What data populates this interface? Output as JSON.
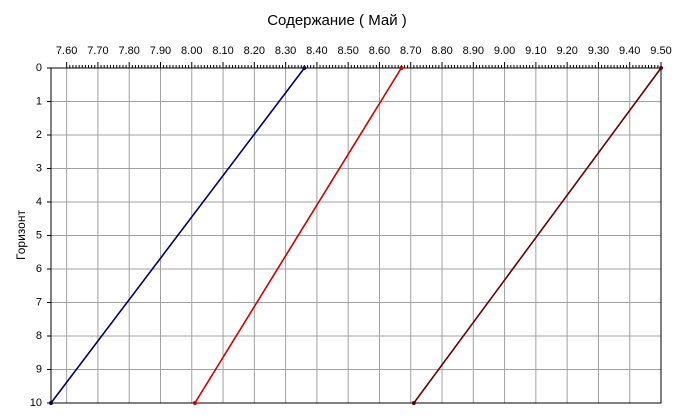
{
  "chart_data": {
    "type": "line",
    "title": "Содержание    ( Май )",
    "ylabel": "Горизонт",
    "xlim": [
      7.55,
      9.5
    ],
    "ylim": [
      0,
      10
    ],
    "y_inverted": true,
    "x_axis_position": "top",
    "grid": true,
    "xticks": [
      {
        "value": 7.6,
        "label": "7.60"
      },
      {
        "value": 7.7,
        "label": "7.70"
      },
      {
        "value": 7.8,
        "label": "7.80"
      },
      {
        "value": 7.9,
        "label": "7.90"
      },
      {
        "value": 8.0,
        "label": "8.00"
      },
      {
        "value": 8.1,
        "label": "8.10"
      },
      {
        "value": 8.2,
        "label": "8.20"
      },
      {
        "value": 8.3,
        "label": "8.30"
      },
      {
        "value": 8.4,
        "label": "8.40"
      },
      {
        "value": 8.5,
        "label": "8.50"
      },
      {
        "value": 8.6,
        "label": "8.60"
      },
      {
        "value": 8.7,
        "label": "8.70"
      },
      {
        "value": 8.8,
        "label": "8.80"
      },
      {
        "value": 8.9,
        "label": "8.90"
      },
      {
        "value": 9.0,
        "label": "9.00"
      },
      {
        "value": 9.1,
        "label": "9.10"
      },
      {
        "value": 9.2,
        "label": "9.20"
      },
      {
        "value": 9.3,
        "label": "9.30"
      },
      {
        "value": 9.4,
        "label": "9.40"
      },
      {
        "value": 9.5,
        "label": "9.50"
      }
    ],
    "yticks": [
      0,
      1,
      2,
      3,
      4,
      5,
      6,
      7,
      8,
      9,
      10
    ],
    "series": [
      {
        "color": "#000066",
        "x": [
          8.36,
          7.55
        ],
        "values": [
          0,
          10
        ]
      },
      {
        "color": "#cc0000",
        "x": [
          8.67,
          8.01
        ],
        "values": [
          0,
          10
        ]
      },
      {
        "color": "#660000",
        "x": [
          9.5,
          8.71
        ],
        "values": [
          0,
          10
        ]
      }
    ]
  }
}
